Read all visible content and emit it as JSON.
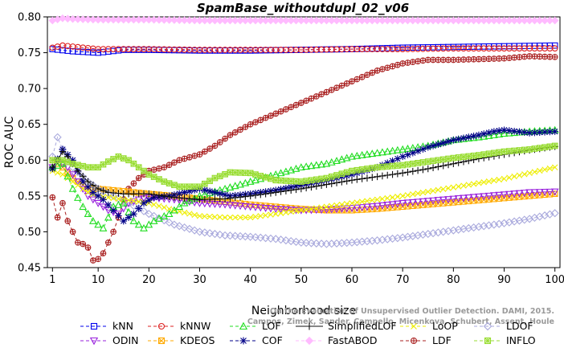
{
  "chart_data": {
    "type": "line",
    "title": "SpamBase_withoutdupl_02_v06",
    "xlabel": "Neighborhood size",
    "ylabel": "ROC AUC",
    "xlim": [
      0,
      101
    ],
    "ylim": [
      0.45,
      0.8
    ],
    "xticks": [
      1,
      10,
      20,
      30,
      40,
      50,
      60,
      70,
      80,
      90,
      100
    ],
    "yticks": [
      0.45,
      0.5,
      0.55,
      0.6,
      0.65,
      0.7,
      0.75,
      0.8
    ],
    "xticklabels": [
      "1",
      "10",
      "20",
      "30",
      "40",
      "50",
      "60",
      "70",
      "80",
      "90",
      "100"
    ],
    "yticklabels": [
      "0.45",
      "0.50",
      "0.55",
      "0.60",
      "0.65",
      "0.70",
      "0.75",
      "0.80"
    ],
    "grid": false,
    "legend_position": "bottom",
    "watermark": [
      "Campos, Zimek, Sander, Campello, Micenkova, Schubert, Assent, Houle",
      "On the Evaluation of Unsupervised Outlier Detection. DAMI, 2015."
    ],
    "series": [
      {
        "name": "kNN",
        "color": "#0000ee",
        "marker": "square",
        "dash": "4,3",
        "points": [
          [
            1,
            0.755
          ],
          [
            5,
            0.752
          ],
          [
            10,
            0.75
          ],
          [
            15,
            0.754
          ],
          [
            20,
            0.754
          ],
          [
            30,
            0.753
          ],
          [
            40,
            0.753
          ],
          [
            50,
            0.754
          ],
          [
            60,
            0.755
          ],
          [
            70,
            0.757
          ],
          [
            80,
            0.758
          ],
          [
            90,
            0.759
          ],
          [
            100,
            0.76
          ]
        ]
      },
      {
        "name": "kNNW",
        "color": "#dd2222",
        "marker": "circle",
        "dash": "4,3",
        "points": [
          [
            1,
            0.757
          ],
          [
            3,
            0.76
          ],
          [
            10,
            0.755
          ],
          [
            20,
            0.755
          ],
          [
            30,
            0.754
          ],
          [
            40,
            0.754
          ],
          [
            50,
            0.754
          ],
          [
            60,
            0.755
          ],
          [
            70,
            0.755
          ],
          [
            80,
            0.756
          ],
          [
            90,
            0.756
          ],
          [
            100,
            0.756
          ]
        ]
      },
      {
        "name": "LOF",
        "color": "#22dd22",
        "marker": "triangle",
        "dash": "4,3",
        "points": [
          [
            1,
            0.59
          ],
          [
            3,
            0.595
          ],
          [
            5,
            0.56
          ],
          [
            7,
            0.535
          ],
          [
            9,
            0.515
          ],
          [
            11,
            0.505
          ],
          [
            13,
            0.535
          ],
          [
            15,
            0.54
          ],
          [
            17,
            0.515
          ],
          [
            19,
            0.505
          ],
          [
            21,
            0.515
          ],
          [
            24,
            0.525
          ],
          [
            27,
            0.54
          ],
          [
            30,
            0.55
          ],
          [
            35,
            0.56
          ],
          [
            40,
            0.57
          ],
          [
            45,
            0.58
          ],
          [
            50,
            0.59
          ],
          [
            55,
            0.595
          ],
          [
            60,
            0.605
          ],
          [
            65,
            0.61
          ],
          [
            70,
            0.615
          ],
          [
            75,
            0.62
          ],
          [
            80,
            0.628
          ],
          [
            85,
            0.632
          ],
          [
            90,
            0.637
          ],
          [
            95,
            0.64
          ],
          [
            100,
            0.642
          ]
        ]
      },
      {
        "name": "SimplifiedLOF",
        "color": "#111111",
        "marker": "plus",
        "dash": "",
        "points": [
          [
            1,
            0.59
          ],
          [
            2,
            0.6
          ],
          [
            3,
            0.612
          ],
          [
            4,
            0.605
          ],
          [
            6,
            0.585
          ],
          [
            8,
            0.57
          ],
          [
            10,
            0.56
          ],
          [
            12,
            0.555
          ],
          [
            15,
            0.553
          ],
          [
            20,
            0.553
          ],
          [
            25,
            0.548
          ],
          [
            30,
            0.545
          ],
          [
            35,
            0.546
          ],
          [
            40,
            0.55
          ],
          [
            45,
            0.555
          ],
          [
            50,
            0.56
          ],
          [
            55,
            0.566
          ],
          [
            60,
            0.572
          ],
          [
            65,
            0.577
          ],
          [
            70,
            0.582
          ],
          [
            75,
            0.588
          ],
          [
            80,
            0.595
          ],
          [
            85,
            0.602
          ],
          [
            90,
            0.608
          ],
          [
            95,
            0.614
          ],
          [
            100,
            0.619
          ]
        ]
      },
      {
        "name": "LoOP",
        "color": "#eeee00",
        "marker": "x",
        "dash": "4,3",
        "points": [
          [
            1,
            0.585
          ],
          [
            3,
            0.58
          ],
          [
            5,
            0.57
          ],
          [
            8,
            0.555
          ],
          [
            10,
            0.55
          ],
          [
            15,
            0.545
          ],
          [
            20,
            0.54
          ],
          [
            25,
            0.53
          ],
          [
            30,
            0.522
          ],
          [
            35,
            0.52
          ],
          [
            40,
            0.52
          ],
          [
            45,
            0.525
          ],
          [
            50,
            0.53
          ],
          [
            55,
            0.535
          ],
          [
            60,
            0.54
          ],
          [
            65,
            0.545
          ],
          [
            70,
            0.55
          ],
          [
            75,
            0.556
          ],
          [
            80,
            0.562
          ],
          [
            85,
            0.568
          ],
          [
            90,
            0.574
          ],
          [
            95,
            0.582
          ],
          [
            100,
            0.59
          ]
        ]
      },
      {
        "name": "LDOF",
        "color": "#aaaadd",
        "marker": "diamond",
        "dash": "4,3",
        "points": [
          [
            1,
            0.605
          ],
          [
            2,
            0.632
          ],
          [
            3,
            0.615
          ],
          [
            5,
            0.59
          ],
          [
            8,
            0.57
          ],
          [
            10,
            0.56
          ],
          [
            13,
            0.55
          ],
          [
            16,
            0.54
          ],
          [
            20,
            0.525
          ],
          [
            25,
            0.51
          ],
          [
            30,
            0.5
          ],
          [
            35,
            0.495
          ],
          [
            40,
            0.493
          ],
          [
            45,
            0.49
          ],
          [
            50,
            0.485
          ],
          [
            55,
            0.483
          ],
          [
            60,
            0.485
          ],
          [
            65,
            0.488
          ],
          [
            70,
            0.492
          ],
          [
            75,
            0.497
          ],
          [
            80,
            0.502
          ],
          [
            85,
            0.507
          ],
          [
            90,
            0.512
          ],
          [
            95,
            0.518
          ],
          [
            100,
            0.526
          ]
        ]
      },
      {
        "name": "ODIN",
        "color": "#9922dd",
        "marker": "triangle-down",
        "dash": "4,3",
        "points": [
          [
            1,
            0.59
          ],
          [
            2,
            0.6
          ],
          [
            4,
            0.59
          ],
          [
            6,
            0.57
          ],
          [
            8,
            0.55
          ],
          [
            10,
            0.54
          ],
          [
            12,
            0.53
          ],
          [
            14,
            0.525
          ],
          [
            16,
            0.54
          ],
          [
            18,
            0.545
          ],
          [
            20,
            0.548
          ],
          [
            25,
            0.545
          ],
          [
            30,
            0.54
          ],
          [
            35,
            0.538
          ],
          [
            40,
            0.535
          ],
          [
            45,
            0.532
          ],
          [
            50,
            0.53
          ],
          [
            55,
            0.531
          ],
          [
            60,
            0.533
          ],
          [
            65,
            0.536
          ],
          [
            70,
            0.54
          ],
          [
            75,
            0.543
          ],
          [
            80,
            0.546
          ],
          [
            85,
            0.549
          ],
          [
            90,
            0.552
          ],
          [
            95,
            0.555
          ],
          [
            100,
            0.556
          ]
        ]
      },
      {
        "name": "KDEOS",
        "color": "#ffaa00",
        "marker": "square-x",
        "dash": "4,3",
        "points": [
          [
            1,
            0.6
          ],
          [
            3,
            0.59
          ],
          [
            5,
            0.575
          ],
          [
            8,
            0.56
          ],
          [
            10,
            0.56
          ],
          [
            13,
            0.558
          ],
          [
            16,
            0.556
          ],
          [
            20,
            0.553
          ],
          [
            25,
            0.55
          ],
          [
            30,
            0.546
          ],
          [
            35,
            0.542
          ],
          [
            40,
            0.538
          ],
          [
            45,
            0.535
          ],
          [
            50,
            0.532
          ],
          [
            55,
            0.53
          ],
          [
            60,
            0.53
          ],
          [
            65,
            0.532
          ],
          [
            70,
            0.535
          ],
          [
            75,
            0.538
          ],
          [
            80,
            0.541
          ],
          [
            85,
            0.544
          ],
          [
            90,
            0.547
          ],
          [
            95,
            0.55
          ],
          [
            100,
            0.553
          ]
        ]
      },
      {
        "name": "COF",
        "color": "#000088",
        "marker": "star",
        "dash": "4,3",
        "points": [
          [
            1,
            0.588
          ],
          [
            3,
            0.615
          ],
          [
            5,
            0.6
          ],
          [
            7,
            0.57
          ],
          [
            9,
            0.555
          ],
          [
            11,
            0.545
          ],
          [
            13,
            0.53
          ],
          [
            15,
            0.515
          ],
          [
            17,
            0.525
          ],
          [
            19,
            0.54
          ],
          [
            21,
            0.548
          ],
          [
            24,
            0.55
          ],
          [
            27,
            0.555
          ],
          [
            30,
            0.56
          ],
          [
            33,
            0.555
          ],
          [
            36,
            0.55
          ],
          [
            40,
            0.553
          ],
          [
            45,
            0.558
          ],
          [
            50,
            0.565
          ],
          [
            55,
            0.572
          ],
          [
            60,
            0.58
          ],
          [
            65,
            0.59
          ],
          [
            70,
            0.605
          ],
          [
            75,
            0.618
          ],
          [
            80,
            0.628
          ],
          [
            85,
            0.635
          ],
          [
            88,
            0.64
          ],
          [
            90,
            0.642
          ],
          [
            95,
            0.638
          ],
          [
            100,
            0.64
          ]
        ]
      },
      {
        "name": "FastABOD",
        "color": "#ffbbff",
        "marker": "diamond-filled",
        "dash": "4,3",
        "points": [
          [
            1,
            0.795
          ],
          [
            3,
            0.798
          ],
          [
            5,
            0.797
          ],
          [
            10,
            0.796
          ],
          [
            20,
            0.796
          ],
          [
            30,
            0.795
          ],
          [
            40,
            0.795
          ],
          [
            50,
            0.795
          ],
          [
            60,
            0.795
          ],
          [
            70,
            0.795
          ],
          [
            80,
            0.795
          ],
          [
            90,
            0.795
          ],
          [
            100,
            0.795
          ]
        ]
      },
      {
        "name": "LDF",
        "color": "#aa2222",
        "marker": "circle-plus",
        "dash": "4,3",
        "points": [
          [
            1,
            0.548
          ],
          [
            2,
            0.52
          ],
          [
            3,
            0.54
          ],
          [
            4,
            0.515
          ],
          [
            5,
            0.5
          ],
          [
            6,
            0.485
          ],
          [
            7,
            0.483
          ],
          [
            8,
            0.478
          ],
          [
            9,
            0.46
          ],
          [
            10,
            0.462
          ],
          [
            11,
            0.47
          ],
          [
            12,
            0.485
          ],
          [
            13,
            0.5
          ],
          [
            14,
            0.52
          ],
          [
            15,
            0.545
          ],
          [
            16,
            0.56
          ],
          [
            18,
            0.575
          ],
          [
            20,
            0.585
          ],
          [
            23,
            0.59
          ],
          [
            26,
            0.6
          ],
          [
            30,
            0.608
          ],
          [
            33,
            0.62
          ],
          [
            36,
            0.635
          ],
          [
            40,
            0.65
          ],
          [
            45,
            0.665
          ],
          [
            50,
            0.68
          ],
          [
            55,
            0.695
          ],
          [
            60,
            0.71
          ],
          [
            65,
            0.725
          ],
          [
            70,
            0.735
          ],
          [
            75,
            0.74
          ],
          [
            80,
            0.74
          ],
          [
            85,
            0.741
          ],
          [
            90,
            0.742
          ],
          [
            95,
            0.745
          ],
          [
            100,
            0.744
          ]
        ]
      },
      {
        "name": "INFLO",
        "color": "#99dd33",
        "marker": "sq-star",
        "dash": "4,3",
        "points": [
          [
            1,
            0.6
          ],
          [
            3,
            0.6
          ],
          [
            5,
            0.595
          ],
          [
            8,
            0.59
          ],
          [
            10,
            0.59
          ],
          [
            12,
            0.598
          ],
          [
            14,
            0.605
          ],
          [
            16,
            0.6
          ],
          [
            18,
            0.59
          ],
          [
            20,
            0.58
          ],
          [
            23,
            0.57
          ],
          [
            26,
            0.563
          ],
          [
            30,
            0.563
          ],
          [
            33,
            0.575
          ],
          [
            36,
            0.583
          ],
          [
            40,
            0.582
          ],
          [
            45,
            0.572
          ],
          [
            50,
            0.57
          ],
          [
            55,
            0.575
          ],
          [
            60,
            0.585
          ],
          [
            65,
            0.59
          ],
          [
            70,
            0.593
          ],
          [
            75,
            0.598
          ],
          [
            80,
            0.603
          ],
          [
            85,
            0.607
          ],
          [
            90,
            0.612
          ],
          [
            95,
            0.615
          ],
          [
            100,
            0.62
          ]
        ]
      }
    ]
  }
}
